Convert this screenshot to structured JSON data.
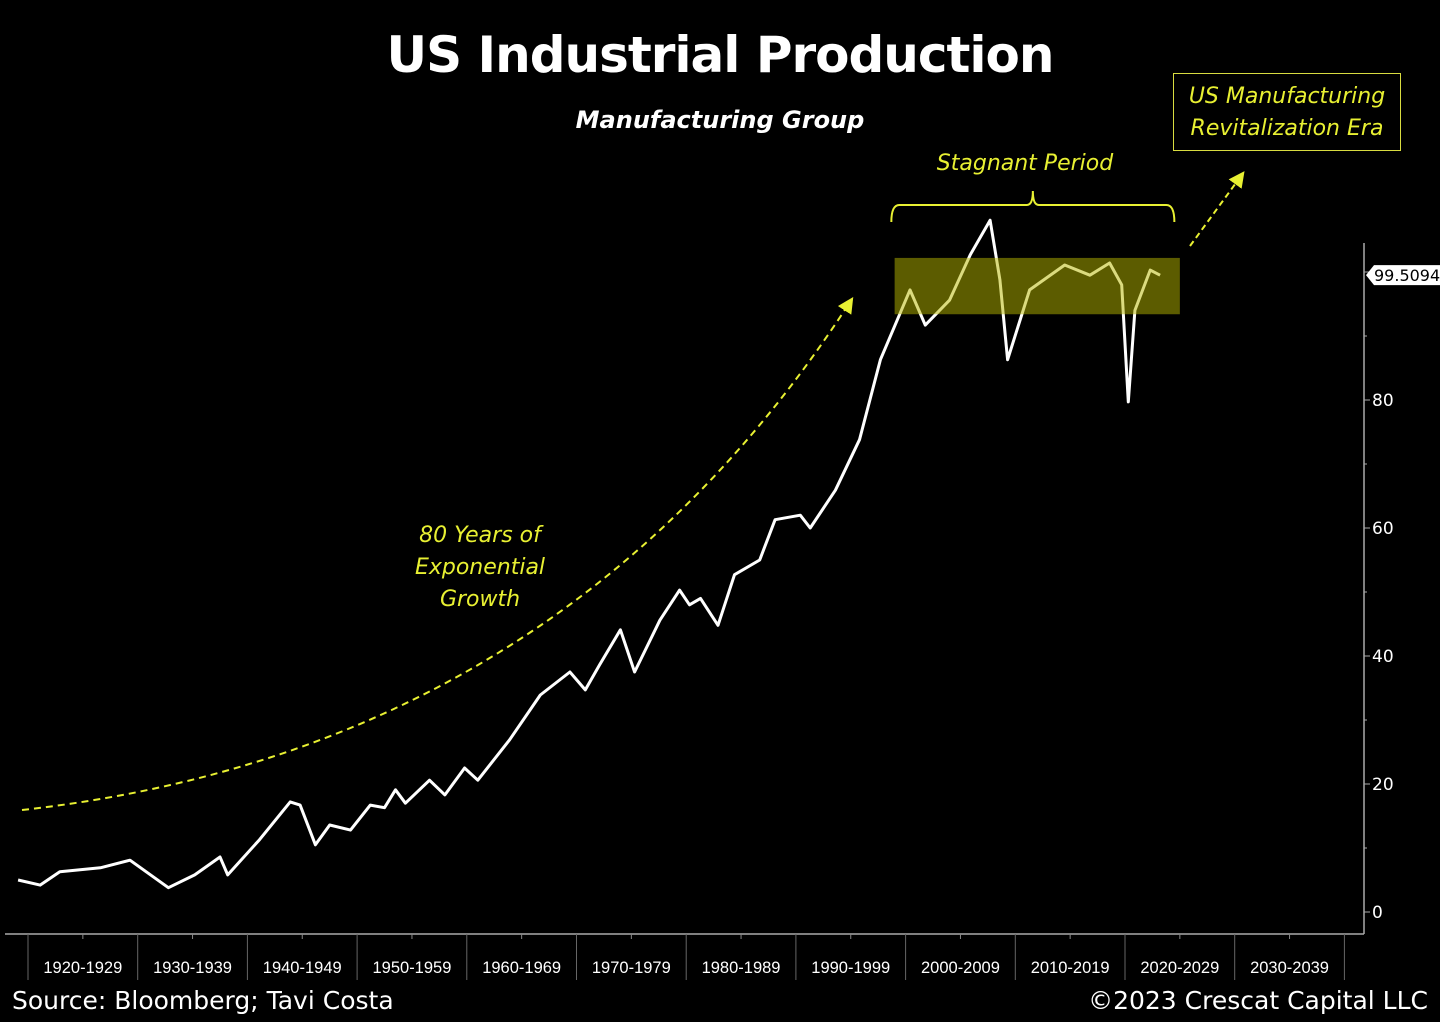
{
  "chart_data": {
    "type": "line",
    "title": "US Industrial Production",
    "subtitle": "Manufacturing Group",
    "xlabel": "",
    "ylabel": "",
    "xlim": [
      1917,
      2040
    ],
    "ylim": [
      0,
      110
    ],
    "y_ticks": [
      0,
      20,
      40,
      60,
      80
    ],
    "y_tick_labels": [
      "0",
      "20",
      "40",
      "60",
      "80"
    ],
    "x_tick_labels": [
      "1920-1929",
      "1930-1939",
      "1940-1949",
      "1950-1959",
      "1960-1969",
      "1970-1979",
      "1980-1989",
      "1990-1999",
      "2000-2009",
      "2010-2019",
      "2020-2029",
      "2030-2039"
    ],
    "y_axis_position": "right",
    "grid": false,
    "last_value_label": "99.5094",
    "series": [
      {
        "color": "#ffffff",
        "x": [
          1919.1,
          1921.1,
          1922.9,
          1926.6,
          1929.3,
          1932.8,
          1935.2,
          1937.5,
          1938.2,
          1941.1,
          1943.9,
          1944.8,
          1946.2,
          1947.5,
          1949.4,
          1951.2,
          1952.5,
          1953.5,
          1954.4,
          1956.6,
          1958.0,
          1959.8,
          1961.0,
          1963.9,
          1966.7,
          1969.4,
          1970.8,
          1972.1,
          1974.0,
          1975.3,
          1977.6,
          1979.4,
          1980.3,
          1981.3,
          1982.9,
          1984.4,
          1986.7,
          1988.1,
          1990.4,
          1991.3,
          1993.6,
          1995.8,
          1997.7,
          2000.4,
          2001.8,
          2004.0,
          2005.9,
          2007.7,
          2008.6,
          2009.3,
          2011.3,
          2014.5,
          2016.8,
          2018.6,
          2019.7,
          2020.3,
          2020.9,
          2022.3,
          2023.2
        ],
        "y": [
          5.0,
          4.2,
          6.3,
          6.9,
          8.1,
          3.8,
          5.8,
          8.6,
          5.8,
          11.3,
          17.2,
          16.7,
          10.5,
          13.6,
          12.8,
          16.7,
          16.3,
          19.1,
          17.0,
          20.6,
          18.3,
          22.5,
          20.6,
          26.9,
          33.9,
          37.5,
          34.7,
          38.6,
          44.1,
          37.5,
          45.6,
          50.3,
          48.0,
          49.0,
          44.8,
          52.7,
          55.0,
          61.3,
          62.0,
          60.0,
          65.9,
          73.8,
          86.3,
          97.2,
          91.7,
          95.6,
          102.7,
          108.1,
          98.8,
          86.3,
          97.2,
          101.1,
          99.5,
          101.4,
          98.0,
          79.7,
          94.0,
          100.3,
          99.5
        ]
      }
    ],
    "highlight_band": {
      "x": [
        1999,
        2025
      ],
      "y": [
        93.4,
        102.2
      ],
      "color": "#b8b800"
    },
    "annotations": {
      "growth": "80 Years of Exponential Growth",
      "growth_lines": [
        "80 Years of",
        "Exponential",
        "Growth"
      ],
      "stagnant": "Stagnant Period",
      "era_lines": [
        "US Manufacturing",
        "Revitalization Era"
      ]
    },
    "annotation_color": "#e8f032"
  },
  "footer": {
    "source": "Source: Bloomberg; Tavi Costa",
    "copyright": "©2023 Crescat Capital LLC"
  }
}
